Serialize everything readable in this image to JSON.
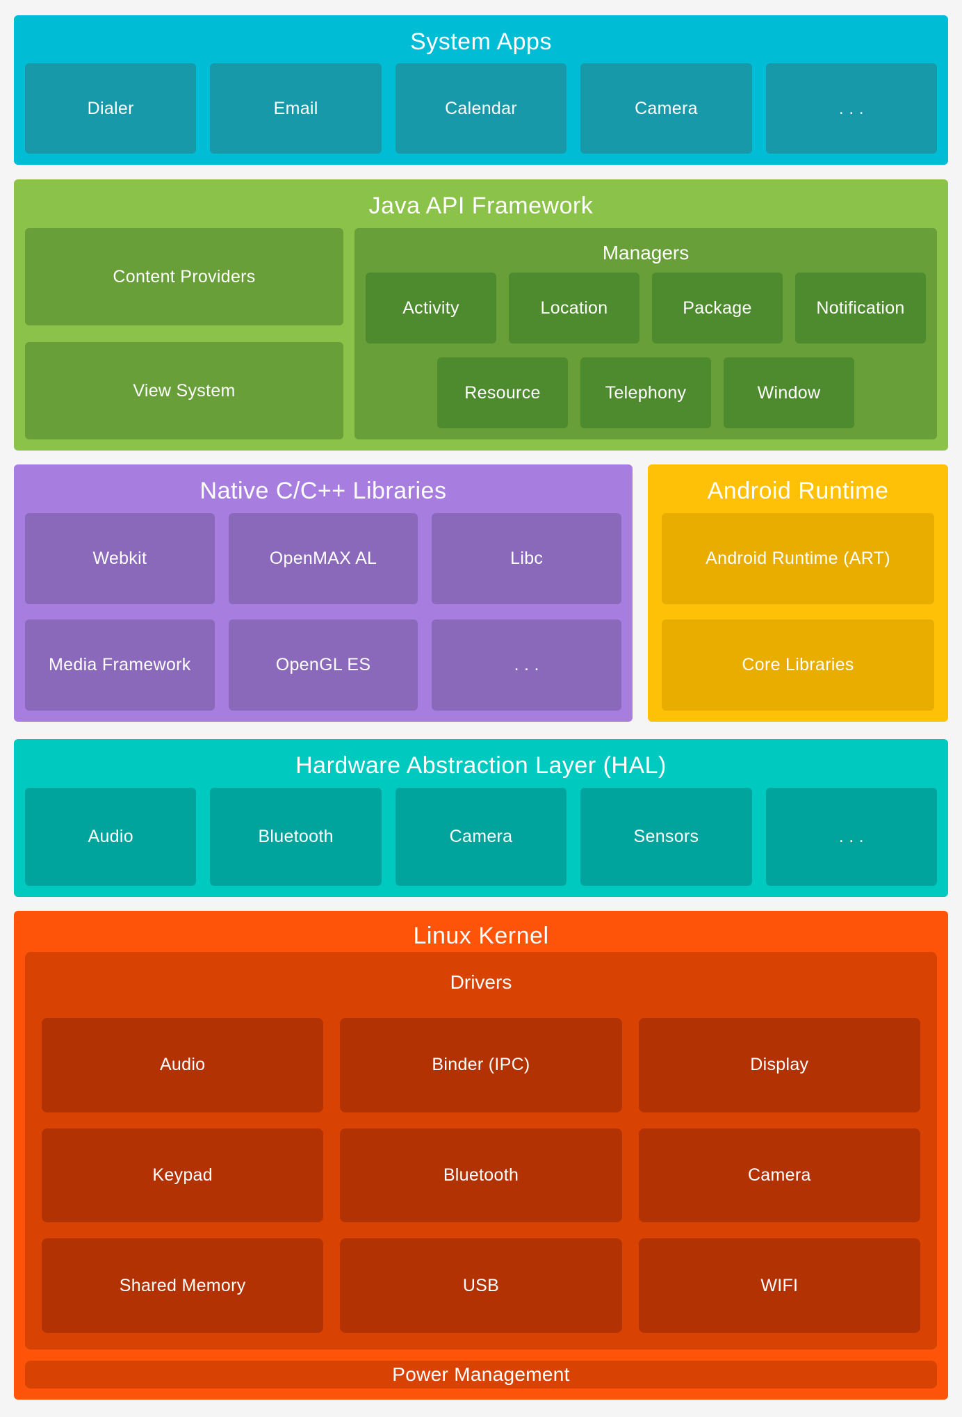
{
  "palette": {
    "page_background": "#f5f5f5",
    "system_apps_bg": "#00bcd4",
    "system_apps_box": "#1899a9",
    "java_bg": "#8bc34a",
    "java_box": "#689f38",
    "java_box_dark": "#4e8a2e",
    "native_bg": "#a77edf",
    "native_box": "#8b69ba",
    "runtime_bg": "#fec107",
    "runtime_box": "#e9ad00",
    "hal_bg": "#00c9c0",
    "hal_box": "#00a49d",
    "kernel_bg": "#fe5409",
    "kernel_container": "#d84304",
    "kernel_box": "#b23203",
    "text": "#ffffff"
  },
  "system_apps": {
    "title": "System Apps",
    "items": [
      "Dialer",
      "Email",
      "Calendar",
      "Camera",
      ". . ."
    ]
  },
  "java_api": {
    "title": "Java API Framework",
    "left_items": [
      "Content Providers",
      "View System"
    ],
    "managers": {
      "title": "Managers",
      "row1": [
        "Activity",
        "Location",
        "Package",
        "Notification"
      ],
      "row2": [
        "Resource",
        "Telephony",
        "Window"
      ]
    }
  },
  "native_libs": {
    "title": "Native C/C++ Libraries",
    "row1": [
      "Webkit",
      "OpenMAX AL",
      "Libc"
    ],
    "row2": [
      "Media Framework",
      "OpenGL ES",
      ". . ."
    ]
  },
  "android_runtime": {
    "title": "Android Runtime",
    "items": [
      "Android Runtime (ART)",
      "Core Libraries"
    ]
  },
  "hal": {
    "title": "Hardware Abstraction Layer (HAL)",
    "items": [
      "Audio",
      "Bluetooth",
      "Camera",
      "Sensors",
      ". . ."
    ]
  },
  "linux_kernel": {
    "title": "Linux Kernel",
    "drivers": {
      "title": "Drivers",
      "rows": [
        [
          "Audio",
          "Binder (IPC)",
          "Display"
        ],
        [
          "Keypad",
          "Bluetooth",
          "Camera"
        ],
        [
          "Shared Memory",
          "USB",
          "WIFI"
        ]
      ]
    },
    "power": "Power Management"
  }
}
